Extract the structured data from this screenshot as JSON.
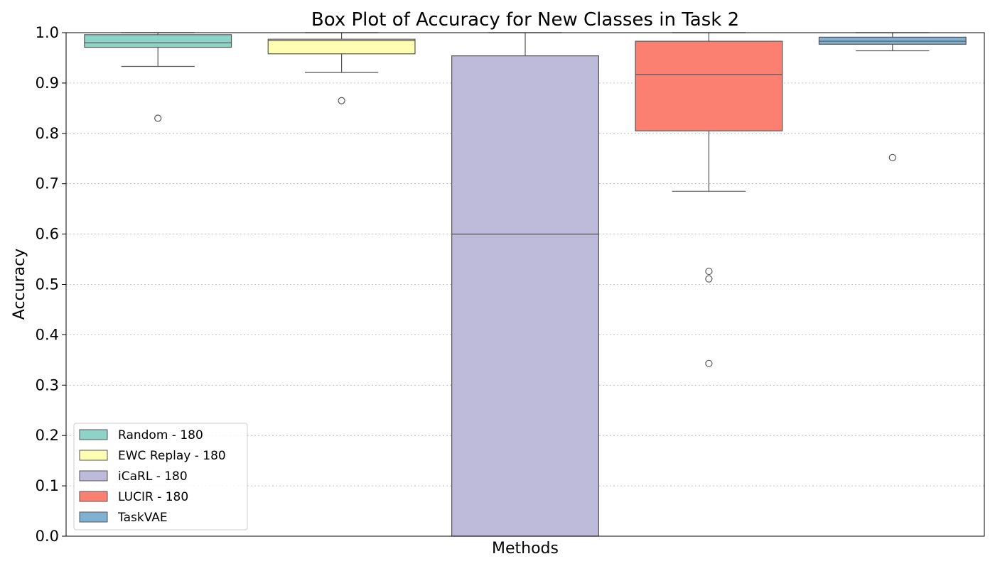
{
  "chart_data": {
    "type": "box",
    "title": "Box Plot of Accuracy for New Classes in Task 2",
    "xlabel": "Methods",
    "ylabel": "Accuracy",
    "ylim": [
      0.0,
      1.0
    ],
    "yticks": [
      "0.0",
      "0.1",
      "0.2",
      "0.3",
      "0.4",
      "0.5",
      "0.6",
      "0.7",
      "0.8",
      "0.9",
      "1.0"
    ],
    "grid": "horizontal dotted",
    "legend_position": "lower-left",
    "series": [
      {
        "name": "Random - 180",
        "color": "#8dd3c7",
        "whisker_low": 0.933,
        "q1": 0.971,
        "median": 0.98,
        "q3": 0.996,
        "whisker_high": 1.0,
        "outliers": [
          0.83
        ]
      },
      {
        "name": "EWC Replay - 180",
        "color": "#ffffb3",
        "whisker_low": 0.921,
        "q1": 0.958,
        "median": 0.984,
        "q3": 0.987,
        "whisker_high": 1.0,
        "outliers": [
          0.865
        ]
      },
      {
        "name": "iCaRL - 180",
        "color": "#bebada",
        "whisker_low": 0.0,
        "q1": 0.0,
        "median": 0.6,
        "q3": 0.954,
        "whisker_high": 1.0,
        "outliers": []
      },
      {
        "name": "LUCIR - 180",
        "color": "#fb8072",
        "whisker_low": 0.685,
        "q1": 0.805,
        "median": 0.917,
        "q3": 0.983,
        "whisker_high": 1.0,
        "outliers": [
          0.526,
          0.511,
          0.343
        ]
      },
      {
        "name": "TaskVAE",
        "color": "#80b1d3",
        "whisker_low": 0.964,
        "q1": 0.977,
        "median": 0.983,
        "q3": 0.991,
        "whisker_high": 1.0,
        "outliers": [
          0.752
        ]
      }
    ]
  }
}
